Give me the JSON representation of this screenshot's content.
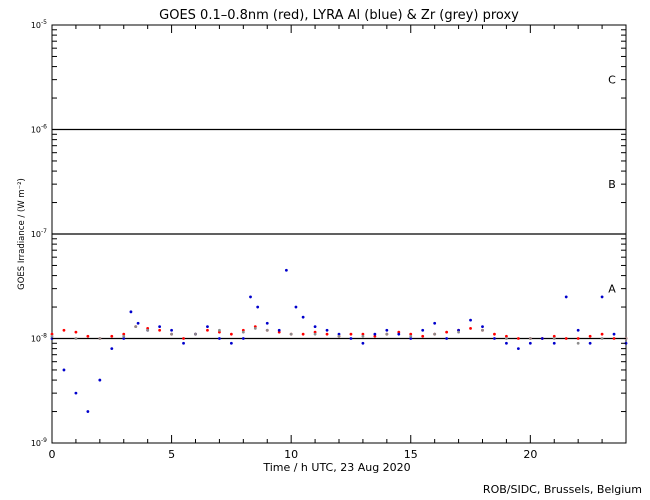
{
  "chart_data": {
    "type": "scatter",
    "title": "GOES 0.1–0.8nm (red), LYRA Al (blue) & Zr (grey) proxy",
    "xlabel": "Time / h UTC, 23 Aug 2020",
    "ylabel": "GOES Irradiance / (W m⁻²)",
    "xlim": [
      0,
      24
    ],
    "ylim": [
      1e-09,
      1e-05
    ],
    "yscale": "log",
    "x_ticks": [
      0,
      5,
      10,
      15,
      20
    ],
    "y_ticks": [
      {
        "value": 1e-05,
        "base": "10",
        "exp": "-5"
      },
      {
        "value": 1e-06,
        "base": "10",
        "exp": "-6"
      },
      {
        "value": 1e-07,
        "base": "10",
        "exp": "-7"
      },
      {
        "value": 1e-08,
        "base": "10",
        "exp": "-8"
      },
      {
        "value": 1e-09,
        "base": "10",
        "exp": "-9"
      }
    ],
    "flare_class_lines": [
      1e-06,
      1e-07,
      1e-08
    ],
    "flare_classes": [
      {
        "label": "C",
        "value": 3e-06
      },
      {
        "label": "B",
        "value": 3e-07
      },
      {
        "label": "A",
        "value": 3e-08
      }
    ],
    "series": [
      {
        "name": "GOES 0.1–0.8nm",
        "color": "#ff0000",
        "x": [
          0.0,
          0.5,
          1.0,
          1.5,
          2.0,
          2.5,
          3.0,
          3.5,
          4.0,
          4.5,
          5.0,
          5.5,
          6.0,
          6.5,
          7.0,
          7.5,
          8.0,
          8.5,
          9.0,
          9.5,
          10.0,
          10.5,
          11.0,
          11.5,
          12.0,
          12.5,
          13.0,
          13.5,
          14.0,
          14.5,
          15.0,
          15.5,
          16.0,
          16.5,
          17.0,
          17.5,
          18.0,
          18.5,
          19.0,
          19.5,
          20.0,
          20.5,
          21.0,
          21.5,
          22.0,
          22.5,
          23.0,
          23.5,
          24.0
        ],
        "y": [
          1.1e-08,
          1.2e-08,
          1.15e-08,
          1.05e-08,
          1e-08,
          1.05e-08,
          1.1e-08,
          1.3e-08,
          1.25e-08,
          1.2e-08,
          1.1e-08,
          1e-08,
          1.1e-08,
          1.2e-08,
          1.15e-08,
          1.1e-08,
          1.2e-08,
          1.3e-08,
          1.2e-08,
          1.15e-08,
          1.1e-08,
          1.1e-08,
          1.15e-08,
          1.1e-08,
          1.05e-08,
          1.1e-08,
          1.1e-08,
          1.05e-08,
          1.1e-08,
          1.15e-08,
          1.1e-08,
          1.05e-08,
          1.1e-08,
          1.15e-08,
          1.2e-08,
          1.25e-08,
          1.2e-08,
          1.1e-08,
          1.05e-08,
          1e-08,
          1e-08,
          1e-08,
          1.05e-08,
          1e-08,
          1e-08,
          1.05e-08,
          1.1e-08,
          1e-08,
          1e-08
        ]
      },
      {
        "name": "LYRA Al",
        "color": "#0000cc",
        "x": [
          0.0,
          0.5,
          1.0,
          1.5,
          2.0,
          2.5,
          3.0,
          3.3,
          3.6,
          4.0,
          4.5,
          5.0,
          5.5,
          6.0,
          6.5,
          7.0,
          7.5,
          8.0,
          8.3,
          8.6,
          9.0,
          9.5,
          9.8,
          10.2,
          10.5,
          11.0,
          11.5,
          12.0,
          12.5,
          13.0,
          13.5,
          14.0,
          14.5,
          15.0,
          15.5,
          16.0,
          16.5,
          17.0,
          17.5,
          18.0,
          18.5,
          19.0,
          19.5,
          20.0,
          20.5,
          21.0,
          21.5,
          22.0,
          22.5,
          23.0,
          23.5,
          24.0
        ],
        "y": [
          1e-08,
          5e-09,
          3e-09,
          2e-09,
          4e-09,
          8e-09,
          1e-08,
          1.8e-08,
          1.4e-08,
          1.2e-08,
          1.3e-08,
          1.2e-08,
          9e-09,
          1.1e-08,
          1.3e-08,
          1e-08,
          9e-09,
          1e-08,
          2.5e-08,
          2e-08,
          1.4e-08,
          1.2e-08,
          4.5e-08,
          2e-08,
          1.6e-08,
          1.3e-08,
          1.2e-08,
          1.1e-08,
          1e-08,
          9e-09,
          1.1e-08,
          1.2e-08,
          1.1e-08,
          1e-08,
          1.2e-08,
          1.4e-08,
          1e-08,
          1.2e-08,
          1.5e-08,
          1.3e-08,
          1e-08,
          9e-09,
          8e-09,
          9e-09,
          1e-08,
          9e-09,
          2.5e-08,
          1.2e-08,
          9e-09,
          2.5e-08,
          1.1e-08,
          9e-09
        ]
      },
      {
        "name": "LYRA Zr",
        "color": "#8c8c8c",
        "x": [
          0.0,
          1.0,
          2.0,
          3.0,
          3.5,
          4.0,
          5.0,
          6.0,
          7.0,
          8.0,
          8.5,
          9.0,
          10.0,
          11.0,
          12.0,
          13.0,
          14.0,
          15.0,
          16.0,
          17.0,
          18.0,
          19.0,
          20.0,
          21.0,
          22.0,
          23.0,
          24.0
        ],
        "y": [
          1.05e-08,
          1e-08,
          1e-08,
          1.05e-08,
          1.3e-08,
          1.2e-08,
          1.1e-08,
          1.1e-08,
          1.2e-08,
          1.15e-08,
          1.25e-08,
          1.2e-08,
          1.1e-08,
          1.1e-08,
          1.05e-08,
          1.05e-08,
          1.1e-08,
          1.05e-08,
          1.1e-08,
          1.15e-08,
          1.2e-08,
          1e-08,
          1e-08,
          1e-08,
          9e-09,
          1e-08,
          1e-08
        ]
      }
    ]
  },
  "credit": "ROB/SIDC, Brussels, Belgium"
}
